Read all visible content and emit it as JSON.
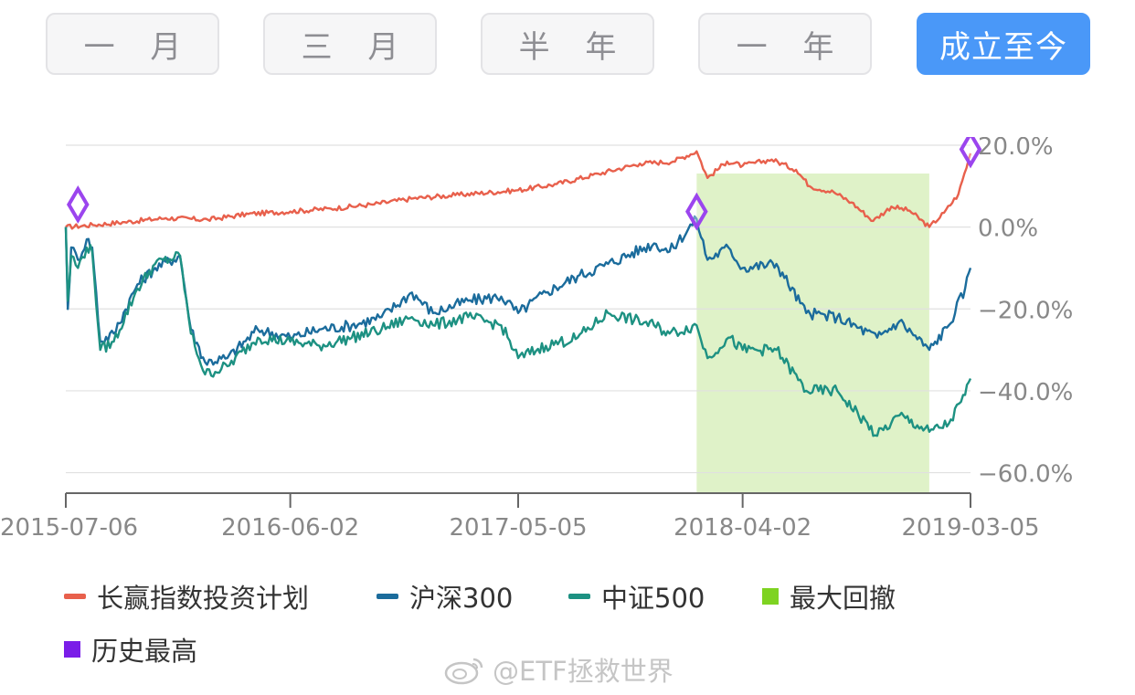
{
  "tabs": [
    {
      "label": "一 月",
      "active": false
    },
    {
      "label": "三 月",
      "active": false
    },
    {
      "label": "半 年",
      "active": false
    },
    {
      "label": "一 年",
      "active": false
    },
    {
      "label": "成立至今",
      "active": true
    }
  ],
  "colors": {
    "plan": "#e8604c",
    "hs300": "#1b6c9c",
    "zz500": "#1d9182",
    "drawdown_legend": "#7ed321",
    "drawdown_fill": "#dff2c8",
    "history_high": "#7a1de8",
    "marker": "#9b45ee",
    "grid": "#e0e0e0",
    "tick_text": "#888888"
  },
  "chart_data": {
    "type": "line",
    "x_range": [
      "2015-07-06",
      "2019-03-05"
    ],
    "ylim": [
      -65,
      22
    ],
    "y_ticks": [
      20,
      0,
      -20,
      -40,
      -60
    ],
    "y_tick_labels": [
      "20.0%",
      "0.0%",
      "−20.0%",
      "−40.0%",
      "−60.0%"
    ],
    "x_ticks": [
      "2015-07-06",
      "2016-06-02",
      "2017-05-05",
      "2018-04-02",
      "2019-03-05"
    ],
    "grid": true,
    "legend_position": "bottom",
    "series": [
      {
        "name": "长赢指数投资计划",
        "color_key": "plan",
        "points": [
          [
            "2015-07-06",
            0
          ],
          [
            "2015-08-15",
            0.5
          ],
          [
            "2015-10-01",
            1.2
          ],
          [
            "2015-12-01",
            2.2
          ],
          [
            "2016-02-01",
            1.8
          ],
          [
            "2016-04-01",
            3.2
          ],
          [
            "2016-06-02",
            3.8
          ],
          [
            "2016-08-01",
            4.5
          ],
          [
            "2016-10-01",
            5.5
          ],
          [
            "2016-12-01",
            7.0
          ],
          [
            "2017-02-01",
            7.8
          ],
          [
            "2017-05-05",
            9.0
          ],
          [
            "2017-07-01",
            10.5
          ],
          [
            "2017-09-01",
            13.0
          ],
          [
            "2017-11-01",
            15.5
          ],
          [
            "2017-12-20",
            16.0
          ],
          [
            "2018-01-24",
            18.5
          ],
          [
            "2018-02-09",
            12.0
          ],
          [
            "2018-03-10",
            16.0
          ],
          [
            "2018-04-02",
            15.0
          ],
          [
            "2018-05-15",
            16.5
          ],
          [
            "2018-06-20",
            14.0
          ],
          [
            "2018-07-10",
            10.0
          ],
          [
            "2018-08-15",
            8.5
          ],
          [
            "2018-09-10",
            6.0
          ],
          [
            "2018-10-12",
            1.5
          ],
          [
            "2018-11-08",
            5.0
          ],
          [
            "2018-12-05",
            4.0
          ],
          [
            "2019-01-03",
            0
          ],
          [
            "2019-01-25",
            3.5
          ],
          [
            "2019-02-15",
            8.0
          ],
          [
            "2019-03-05",
            18.0
          ]
        ]
      },
      {
        "name": "沪深300",
        "color_key": "hs300",
        "points": [
          [
            "2015-07-06",
            0
          ],
          [
            "2015-07-09",
            -20
          ],
          [
            "2015-07-14",
            -5
          ],
          [
            "2015-07-24",
            -8
          ],
          [
            "2015-08-06",
            -3
          ],
          [
            "2015-08-14",
            -5
          ],
          [
            "2015-08-26",
            -28
          ],
          [
            "2015-09-15",
            -26
          ],
          [
            "2015-10-20",
            -14
          ],
          [
            "2015-11-15",
            -10
          ],
          [
            "2015-12-22",
            -7
          ],
          [
            "2016-01-07",
            -25
          ],
          [
            "2016-01-28",
            -33
          ],
          [
            "2016-03-01",
            -32
          ],
          [
            "2016-04-15",
            -25
          ],
          [
            "2016-06-02",
            -27
          ],
          [
            "2016-07-15",
            -25
          ],
          [
            "2016-09-01",
            -24
          ],
          [
            "2016-10-15",
            -22
          ],
          [
            "2016-11-29",
            -16
          ],
          [
            "2016-12-30",
            -21
          ],
          [
            "2017-02-20",
            -18
          ],
          [
            "2017-04-10",
            -17
          ],
          [
            "2017-05-05",
            -21
          ],
          [
            "2017-06-15",
            -16
          ],
          [
            "2017-08-01",
            -12
          ],
          [
            "2017-09-15",
            -9
          ],
          [
            "2017-11-22",
            -4
          ],
          [
            "2017-12-15",
            -6
          ],
          [
            "2018-01-24",
            2
          ],
          [
            "2018-02-09",
            -8
          ],
          [
            "2018-03-12",
            -5
          ],
          [
            "2018-04-02",
            -10
          ],
          [
            "2018-05-22",
            -9
          ],
          [
            "2018-07-05",
            -21
          ],
          [
            "2018-08-20",
            -22
          ],
          [
            "2018-10-18",
            -27
          ],
          [
            "2018-11-20",
            -23
          ],
          [
            "2019-01-03",
            -30
          ],
          [
            "2019-02-01",
            -24
          ],
          [
            "2019-02-25",
            -15
          ],
          [
            "2019-03-05",
            -10
          ]
        ]
      },
      {
        "name": "中证500",
        "color_key": "zz500",
        "points": [
          [
            "2015-07-06",
            0
          ],
          [
            "2015-07-09",
            -18
          ],
          [
            "2015-07-14",
            -7
          ],
          [
            "2015-07-24",
            -10
          ],
          [
            "2015-08-06",
            -5
          ],
          [
            "2015-08-14",
            -6
          ],
          [
            "2015-08-26",
            -30
          ],
          [
            "2015-09-15",
            -28
          ],
          [
            "2015-10-20",
            -15
          ],
          [
            "2015-11-15",
            -9
          ],
          [
            "2015-12-22",
            -7
          ],
          [
            "2016-01-07",
            -26
          ],
          [
            "2016-01-28",
            -36
          ],
          [
            "2016-03-01",
            -34
          ],
          [
            "2016-04-15",
            -27
          ],
          [
            "2016-06-02",
            -28
          ],
          [
            "2016-07-15",
            -29
          ],
          [
            "2016-09-01",
            -27
          ],
          [
            "2016-10-15",
            -25
          ],
          [
            "2016-11-29",
            -22
          ],
          [
            "2016-12-30",
            -24
          ],
          [
            "2017-02-20",
            -22
          ],
          [
            "2017-04-10",
            -24
          ],
          [
            "2017-05-05",
            -32
          ],
          [
            "2017-06-15",
            -29
          ],
          [
            "2017-08-01",
            -27
          ],
          [
            "2017-09-15",
            -21
          ],
          [
            "2017-11-22",
            -24
          ],
          [
            "2017-12-15",
            -26
          ],
          [
            "2018-01-24",
            -24
          ],
          [
            "2018-02-09",
            -32
          ],
          [
            "2018-03-12",
            -27
          ],
          [
            "2018-04-02",
            -30
          ],
          [
            "2018-05-22",
            -30
          ],
          [
            "2018-07-05",
            -40
          ],
          [
            "2018-08-20",
            -40
          ],
          [
            "2018-10-18",
            -51
          ],
          [
            "2018-11-20",
            -46
          ],
          [
            "2019-01-03",
            -50
          ],
          [
            "2019-02-01",
            -48
          ],
          [
            "2019-02-25",
            -41
          ],
          [
            "2019-03-05",
            -37
          ]
        ]
      }
    ],
    "legend": [
      {
        "name": "长赢指数投资计划",
        "color_key": "plan",
        "shape": "line"
      },
      {
        "name": "沪深300",
        "color_key": "hs300",
        "shape": "line"
      },
      {
        "name": "中证500",
        "color_key": "zz500",
        "shape": "line"
      },
      {
        "name": "最大回撤",
        "color_key": "drawdown_legend",
        "shape": "box"
      },
      {
        "name": "历史最高",
        "color_key": "history_high",
        "shape": "box"
      }
    ],
    "max_drawdown": {
      "start": "2018-01-24",
      "end": "2019-01-03"
    },
    "history_high_markers": [
      {
        "date": "2015-07-24",
        "value": 5.5
      },
      {
        "date": "2018-01-24",
        "value": 3.8
      },
      {
        "date": "2019-03-05",
        "value": 19.0
      }
    ]
  },
  "watermark": {
    "text": "@ETF拯救世界"
  }
}
